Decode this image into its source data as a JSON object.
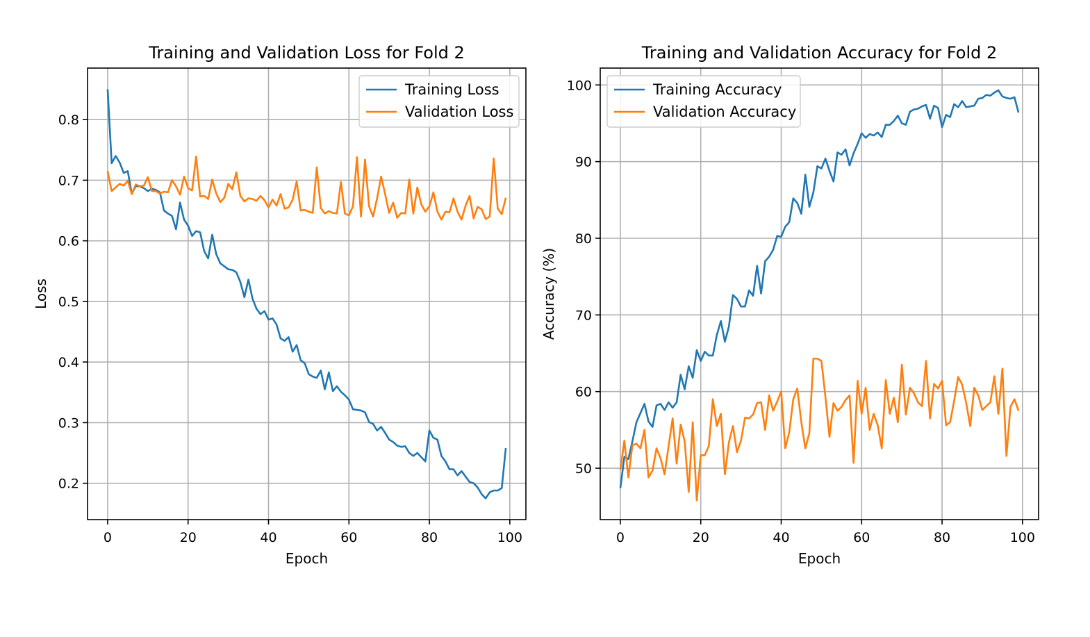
{
  "chart_data": [
    {
      "type": "line",
      "title": "Training and Validation Loss for Fold 2",
      "xlabel": "Epoch",
      "ylabel": "Loss",
      "xlim": [
        -5,
        104
      ],
      "ylim": [
        0.14,
        0.885
      ],
      "xticks": [
        0,
        20,
        40,
        60,
        80,
        100
      ],
      "yticks": [
        0.2,
        0.3,
        0.4,
        0.5,
        0.6,
        0.7,
        0.8
      ],
      "ytick_labels": [
        "0.2",
        "0.3",
        "0.4",
        "0.5",
        "0.6",
        "0.7",
        "0.8"
      ],
      "grid": true,
      "legend_position": "upper-right",
      "series": [
        {
          "name": "Training Loss",
          "color": "#1f77b4",
          "values": [
            0.85,
            0.728,
            0.74,
            0.729,
            0.712,
            0.715,
            0.678,
            0.69,
            0.69,
            0.687,
            0.682,
            0.686,
            0.684,
            0.68,
            0.65,
            0.645,
            0.641,
            0.619,
            0.663,
            0.635,
            0.625,
            0.608,
            0.616,
            0.614,
            0.583,
            0.571,
            0.61,
            0.578,
            0.563,
            0.558,
            0.553,
            0.552,
            0.548,
            0.532,
            0.507,
            0.536,
            0.505,
            0.488,
            0.479,
            0.484,
            0.47,
            0.472,
            0.462,
            0.439,
            0.435,
            0.441,
            0.417,
            0.428,
            0.403,
            0.398,
            0.38,
            0.376,
            0.374,
            0.386,
            0.355,
            0.383,
            0.352,
            0.36,
            0.351,
            0.345,
            0.338,
            0.322,
            0.321,
            0.32,
            0.317,
            0.301,
            0.298,
            0.287,
            0.293,
            0.283,
            0.272,
            0.268,
            0.262,
            0.26,
            0.261,
            0.25,
            0.245,
            0.25,
            0.243,
            0.236,
            0.287,
            0.275,
            0.272,
            0.245,
            0.236,
            0.223,
            0.223,
            0.213,
            0.22,
            0.211,
            0.202,
            0.2,
            0.193,
            0.182,
            0.175,
            0.185,
            0.188,
            0.188,
            0.192,
            0.258
          ]
        },
        {
          "name": "Validation Loss",
          "color": "#ff7f0e",
          "values": [
            0.715,
            0.682,
            0.688,
            0.694,
            0.691,
            0.699,
            0.677,
            0.693,
            0.69,
            0.691,
            0.705,
            0.682,
            0.682,
            0.678,
            0.681,
            0.68,
            0.7,
            0.69,
            0.676,
            0.706,
            0.687,
            0.683,
            0.739,
            0.673,
            0.674,
            0.669,
            0.701,
            0.678,
            0.664,
            0.671,
            0.694,
            0.685,
            0.713,
            0.674,
            0.665,
            0.67,
            0.669,
            0.666,
            0.674,
            0.667,
            0.655,
            0.668,
            0.658,
            0.677,
            0.653,
            0.655,
            0.668,
            0.698,
            0.65,
            0.651,
            0.648,
            0.646,
            0.721,
            0.654,
            0.645,
            0.649,
            0.646,
            0.645,
            0.697,
            0.645,
            0.642,
            0.657,
            0.738,
            0.64,
            0.734,
            0.657,
            0.64,
            0.67,
            0.706,
            0.677,
            0.646,
            0.663,
            0.638,
            0.646,
            0.645,
            0.701,
            0.645,
            0.688,
            0.66,
            0.648,
            0.657,
            0.68,
            0.648,
            0.635,
            0.648,
            0.647,
            0.67,
            0.648,
            0.635,
            0.658,
            0.674,
            0.637,
            0.656,
            0.652,
            0.636,
            0.64,
            0.736,
            0.653,
            0.644,
            0.671
          ]
        }
      ]
    },
    {
      "type": "line",
      "title": "Training and Validation Accuracy for Fold 2",
      "xlabel": "Epoch",
      "ylabel": "Accuracy (%)",
      "xlim": [
        -5,
        104
      ],
      "ylim": [
        43.3,
        102.2
      ],
      "xticks": [
        0,
        20,
        40,
        60,
        80,
        100
      ],
      "yticks": [
        50,
        60,
        70,
        80,
        90,
        100
      ],
      "ytick_labels": [
        "50",
        "60",
        "70",
        "80",
        "90",
        "100"
      ],
      "grid": true,
      "legend_position": "upper-left",
      "series": [
        {
          "name": "Training Accuracy",
          "color": "#1f77b4",
          "values": [
            47.4,
            51.5,
            51.2,
            53.5,
            56.0,
            57.2,
            58.4,
            56.1,
            55.4,
            58.2,
            58.4,
            57.6,
            58.6,
            57.9,
            58.6,
            62.2,
            60.3,
            63.3,
            61.8,
            65.4,
            64.0,
            65.2,
            64.7,
            64.7,
            67.4,
            69.2,
            66.5,
            68.5,
            72.6,
            72.1,
            71.1,
            71.1,
            73.2,
            72.5,
            76.4,
            72.8,
            77.0,
            77.6,
            78.5,
            80.3,
            80.2,
            81.5,
            82.1,
            85.2,
            84.6,
            83.2,
            88.3,
            84.1,
            86.0,
            89.4,
            89.1,
            90.4,
            88.8,
            87.4,
            91.2,
            90.9,
            91.6,
            89.5,
            91.1,
            92.3,
            93.7,
            93.1,
            93.6,
            93.4,
            93.8,
            93.2,
            94.8,
            94.8,
            95.3,
            96.0,
            95.0,
            94.8,
            96.5,
            96.8,
            96.9,
            97.2,
            97.4,
            95.6,
            97.3,
            97.0,
            94.5,
            96.1,
            95.8,
            97.5,
            97.1,
            97.9,
            97.1,
            97.2,
            97.3,
            98.2,
            98.3,
            98.7,
            98.6,
            99.0,
            99.3,
            98.5,
            98.3,
            98.2,
            98.4,
            96.4
          ]
        },
        {
          "name": "Validation Accuracy",
          "color": "#ff7f0e",
          "values": [
            49.8,
            53.6,
            48.8,
            53.0,
            53.2,
            52.6,
            55.0,
            48.8,
            49.7,
            52.6,
            51.3,
            49.2,
            52.9,
            56.5,
            50.6,
            55.7,
            53.5,
            46.9,
            56.0,
            45.8,
            51.7,
            51.7,
            52.9,
            59.0,
            55.5,
            57.1,
            49.2,
            53.4,
            55.5,
            52.1,
            53.6,
            56.6,
            56.5,
            57.0,
            58.5,
            58.6,
            55.0,
            59.5,
            57.5,
            58.7,
            60.0,
            52.6,
            54.7,
            59.0,
            60.4,
            56.0,
            52.6,
            54.6,
            64.3,
            64.3,
            64.0,
            59.3,
            54.1,
            58.5,
            57.5,
            58.0,
            58.9,
            59.5,
            50.7,
            61.4,
            57.1,
            60.5,
            55.0,
            57.1,
            55.6,
            52.6,
            61.5,
            57.1,
            59.2,
            56.0,
            63.5,
            57.0,
            60.5,
            59.8,
            58.6,
            58.1,
            64.0,
            56.5,
            61.0,
            60.4,
            61.4,
            55.6,
            56.0,
            58.8,
            61.9,
            60.9,
            58.5,
            55.5,
            60.5,
            59.5,
            57.6,
            58.1,
            58.6,
            62.0,
            57.1,
            63.0,
            51.6,
            58.0,
            59.0,
            57.5
          ]
        }
      ]
    }
  ]
}
